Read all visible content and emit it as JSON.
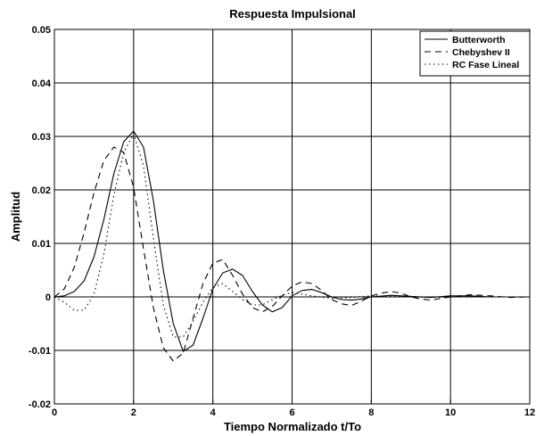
{
  "chart_data": {
    "type": "line",
    "title": "Respuesta Impulsional",
    "xlabel": "Tiempo Normalizado t/To",
    "ylabel": "Amplitud",
    "xlim": [
      0,
      12
    ],
    "ylim": [
      -0.02,
      0.05
    ],
    "xticks": [
      0,
      2,
      4,
      6,
      8,
      10,
      12
    ],
    "xtick_labels": [
      "0",
      "2",
      "4",
      "6",
      "8",
      "10",
      "12"
    ],
    "yticks": [
      -0.02,
      -0.01,
      0,
      0.01,
      0.02,
      0.03,
      0.04,
      0.05
    ],
    "ytick_labels": [
      "-0.02",
      "-0.01",
      "0",
      "0.01",
      "0.02",
      "0.03",
      "0.04",
      "0.05"
    ],
    "grid": true,
    "legend_position": "top-right",
    "series": [
      {
        "name": "Butterworth",
        "line_style": "solid",
        "color": "#000000",
        "x": [
          0,
          0.25,
          0.5,
          0.75,
          1.0,
          1.25,
          1.5,
          1.75,
          2.0,
          2.25,
          2.5,
          2.75,
          3.0,
          3.25,
          3.5,
          3.75,
          4.0,
          4.25,
          4.5,
          4.75,
          5.0,
          5.25,
          5.5,
          5.75,
          6.0,
          6.25,
          6.5,
          6.75,
          7.0,
          7.25,
          7.5,
          7.75,
          8.0,
          8.5,
          9.0,
          9.5,
          10.0,
          10.5,
          11.0,
          11.5,
          12.0
        ],
        "y": [
          0,
          0.0002,
          0.001,
          0.003,
          0.0075,
          0.0145,
          0.023,
          0.029,
          0.031,
          0.028,
          0.018,
          0.005,
          -0.005,
          -0.0102,
          -0.009,
          -0.004,
          0.0015,
          0.0045,
          0.0052,
          0.004,
          0.001,
          -0.0015,
          -0.0028,
          -0.002,
          0.0002,
          0.0012,
          0.0014,
          0.0008,
          0,
          -0.0005,
          -0.0006,
          -0.0004,
          0,
          0.0003,
          0.0001,
          -0.0001,
          0.0002,
          0.0002,
          0,
          0,
          0
        ]
      },
      {
        "name": "Chebyshev II",
        "line_style": "dashed",
        "color": "#000000",
        "x": [
          0,
          0.25,
          0.5,
          0.75,
          1.0,
          1.25,
          1.5,
          1.75,
          2.0,
          2.25,
          2.5,
          2.75,
          3.0,
          3.25,
          3.5,
          3.75,
          4.0,
          4.25,
          4.5,
          4.75,
          5.0,
          5.25,
          5.5,
          5.75,
          6.0,
          6.25,
          6.5,
          6.75,
          7.0,
          7.25,
          7.5,
          7.75,
          8.0,
          8.25,
          8.5,
          8.75,
          9.0,
          9.25,
          9.5,
          10.0,
          10.5,
          11.0,
          11.5,
          12.0
        ],
        "y": [
          0,
          0.0015,
          0.0055,
          0.012,
          0.0195,
          0.0255,
          0.028,
          0.027,
          0.0205,
          0.009,
          -0.002,
          -0.0095,
          -0.012,
          -0.0105,
          -0.004,
          0.0025,
          0.0063,
          0.007,
          0.004,
          0.0005,
          -0.002,
          -0.0028,
          -0.0018,
          0.0002,
          0.002,
          0.0028,
          0.0025,
          0.0012,
          -0.0005,
          -0.0013,
          -0.0016,
          -0.0008,
          0.0002,
          0.0007,
          0.001,
          0.0007,
          0,
          -0.0004,
          -0.0006,
          0,
          0.0004,
          0.0002,
          -0.0001,
          0
        ],
        "dash": "7 5"
      },
      {
        "name": "RC Fase Lineal",
        "line_style": "dotted",
        "color": "#000000",
        "x": [
          0,
          0.25,
          0.5,
          0.75,
          1.0,
          1.25,
          1.5,
          1.75,
          2.0,
          2.25,
          2.5,
          2.75,
          3.0,
          3.25,
          3.5,
          3.75,
          4.0,
          4.25,
          4.5,
          4.75,
          5.0,
          5.25,
          5.5,
          5.75,
          6.0,
          6.5,
          7.0,
          7.5,
          8.0,
          8.5,
          9.0,
          9.5,
          10.0,
          10.5,
          11.0,
          11.5,
          12.0
        ],
        "y": [
          0,
          -0.001,
          -0.0025,
          -0.0025,
          0.0005,
          0.008,
          0.019,
          0.027,
          0.0305,
          0.0245,
          0.011,
          -0.0015,
          -0.0075,
          -0.0075,
          -0.0045,
          -0.001,
          0.0018,
          0.0025,
          0.001,
          -0.0005,
          -0.0015,
          -0.0015,
          -0.0005,
          0.0003,
          0.0008,
          0.0002,
          -0.0003,
          -0.0001,
          0.0002,
          0.0001,
          0,
          -0.0001,
          0,
          0.0001,
          0,
          0,
          0
        ],
        "dash": "1.5 3.5"
      }
    ]
  }
}
